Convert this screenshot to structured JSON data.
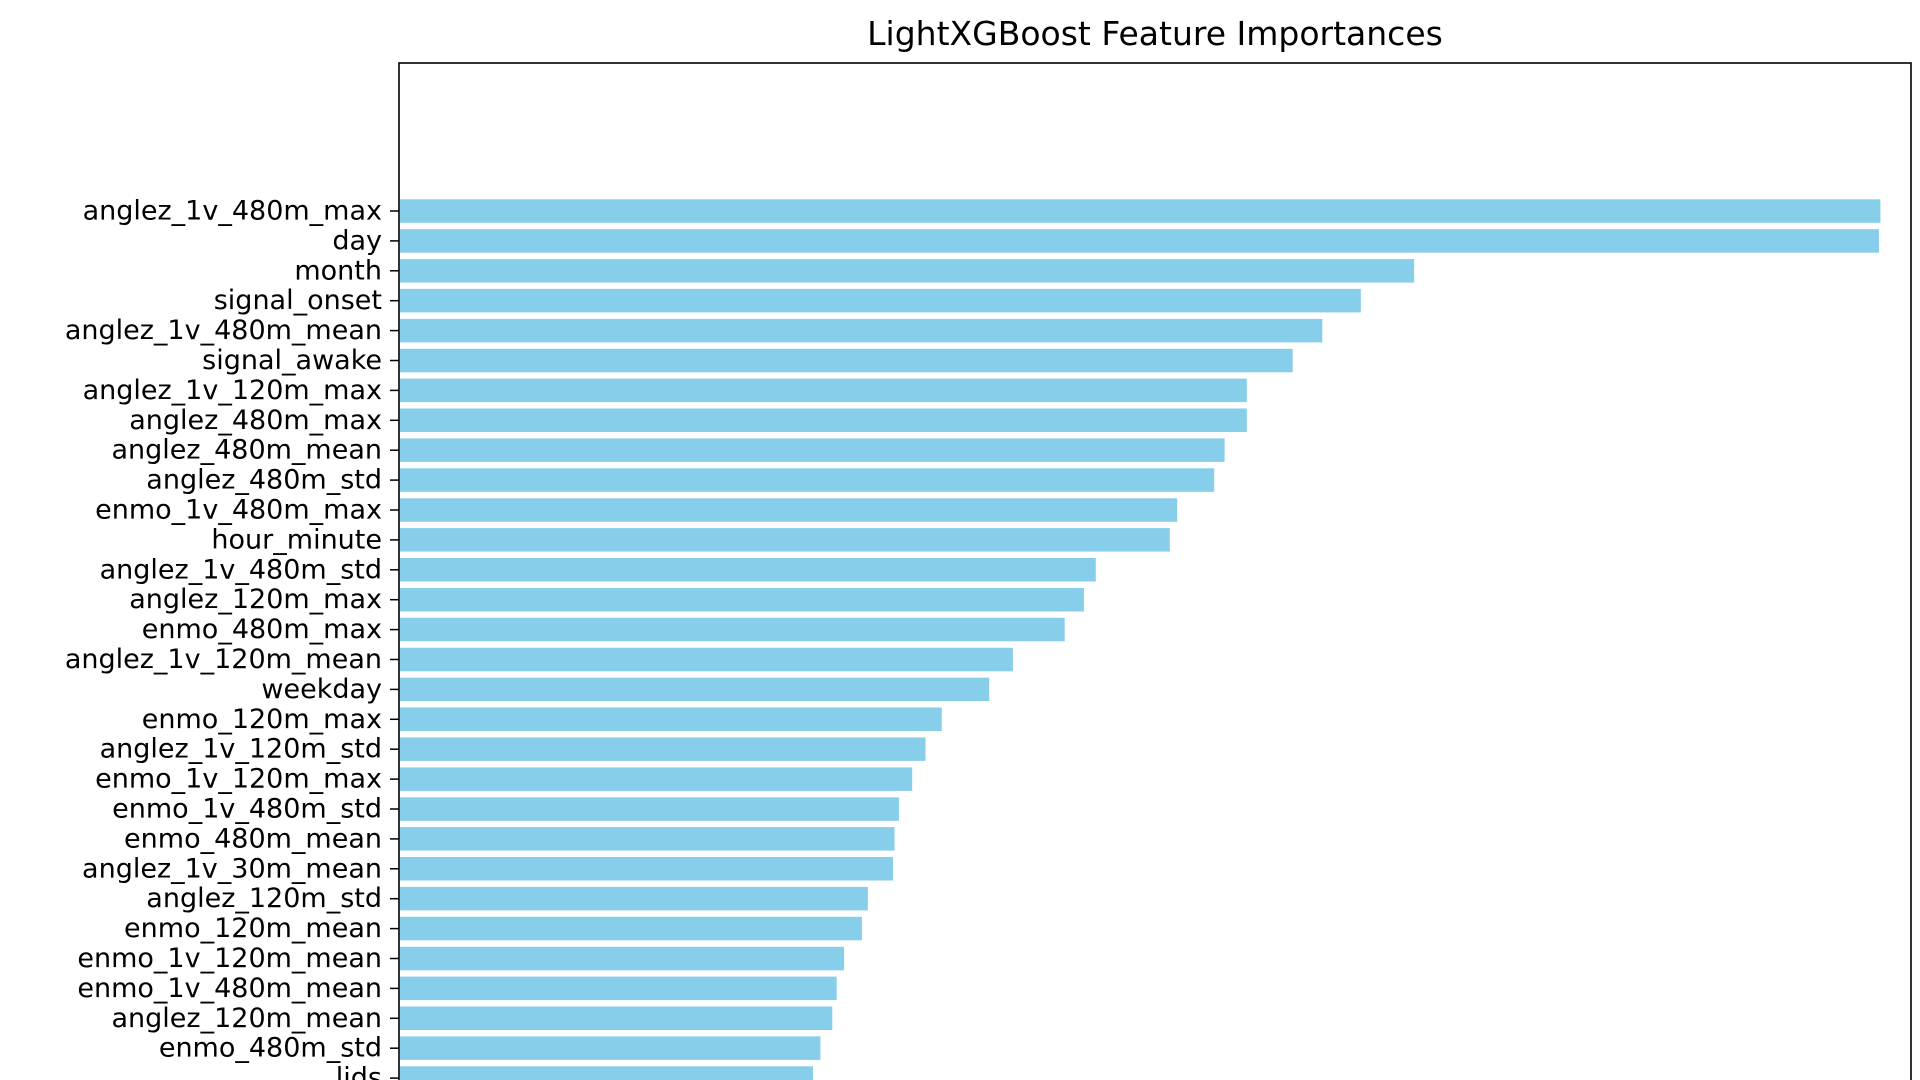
{
  "chart_data": {
    "type": "bar",
    "orientation": "horizontal",
    "title": "LightXGBoost Feature Importances",
    "xlabel": "",
    "ylabel": "",
    "bar_color": "#87CEEB",
    "grid": false,
    "legend": "none",
    "xlim": [
      0,
      102
    ],
    "categories": [
      "anglez_1v_480m_max",
      "day",
      "month",
      "signal_onset",
      "anglez_1v_480m_mean",
      "signal_awake",
      "anglez_1v_120m_max",
      "anglez_480m_max",
      "anglez_480m_mean",
      "anglez_480m_std",
      "enmo_1v_480m_max",
      "hour_minute",
      "anglez_1v_480m_std",
      "anglez_120m_max",
      "enmo_480m_max",
      "anglez_1v_120m_mean",
      "weekday",
      "enmo_120m_max",
      "anglez_1v_120m_std",
      "enmo_1v_120m_max",
      "enmo_1v_480m_std",
      "enmo_480m_mean",
      "anglez_1v_30m_mean",
      "anglez_120m_std",
      "enmo_120m_mean",
      "enmo_1v_120m_mean",
      "enmo_1v_480m_mean",
      "anglez_120m_mean",
      "enmo_480m_std",
      "lids"
    ],
    "values": [
      100,
      99.9,
      68.5,
      64.9,
      62.3,
      60.3,
      57.2,
      57.2,
      55.7,
      55.0,
      52.5,
      52.0,
      47.0,
      46.2,
      44.9,
      41.4,
      39.8,
      36.6,
      35.5,
      34.6,
      33.7,
      33.4,
      33.3,
      31.6,
      31.2,
      30.0,
      29.5,
      29.2,
      28.4,
      27.9
    ]
  }
}
